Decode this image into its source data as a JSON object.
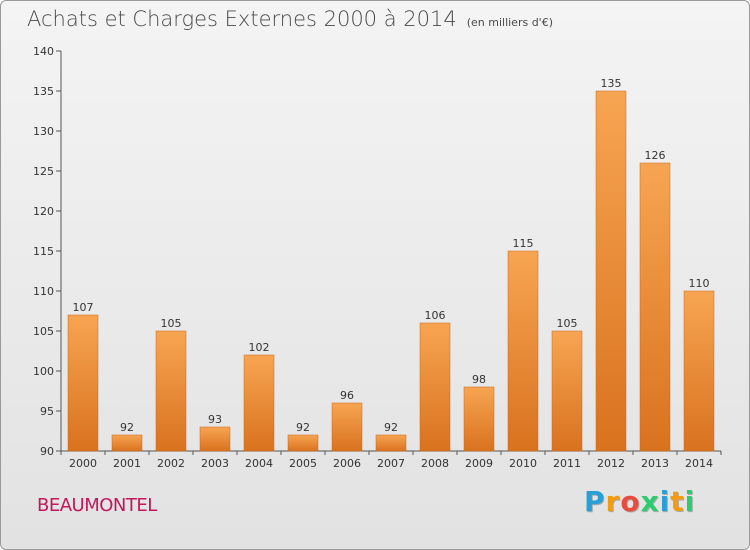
{
  "header": {
    "title": "Achats et Charges Externes 2000 à 2014",
    "subtitle": "(en milliers d'€)"
  },
  "footer": {
    "commune": "BEAUMONTEL",
    "brand_letters": [
      "P",
      "r",
      "o",
      "x",
      "i",
      "t",
      "i"
    ],
    "brand_colors": [
      "#2a9fd6",
      "#f39c12",
      "#e74c3c",
      "#2ecc71",
      "#2a9fd6",
      "#f39c12",
      "#2ecc71"
    ]
  },
  "colors": {
    "bar_top": "#f7a552",
    "bar_bottom": "#d9721f",
    "axis": "#555555",
    "grid": "#cccccc"
  },
  "chart_data": {
    "type": "bar",
    "title": "Achats et Charges Externes 2000 à 2014",
    "subtitle": "(en milliers d'€)",
    "categories": [
      "2000",
      "2001",
      "2002",
      "2003",
      "2004",
      "2005",
      "2006",
      "2007",
      "2008",
      "2009",
      "2010",
      "2011",
      "2012",
      "2013",
      "2014"
    ],
    "values": [
      107,
      92,
      105,
      93,
      102,
      92,
      96,
      92,
      106,
      98,
      115,
      105,
      135,
      126,
      110
    ],
    "ylim": [
      90,
      140
    ],
    "yticks": [
      90,
      95,
      100,
      105,
      110,
      115,
      120,
      125,
      130,
      135,
      140
    ],
    "grid": false,
    "data_labels": true
  }
}
